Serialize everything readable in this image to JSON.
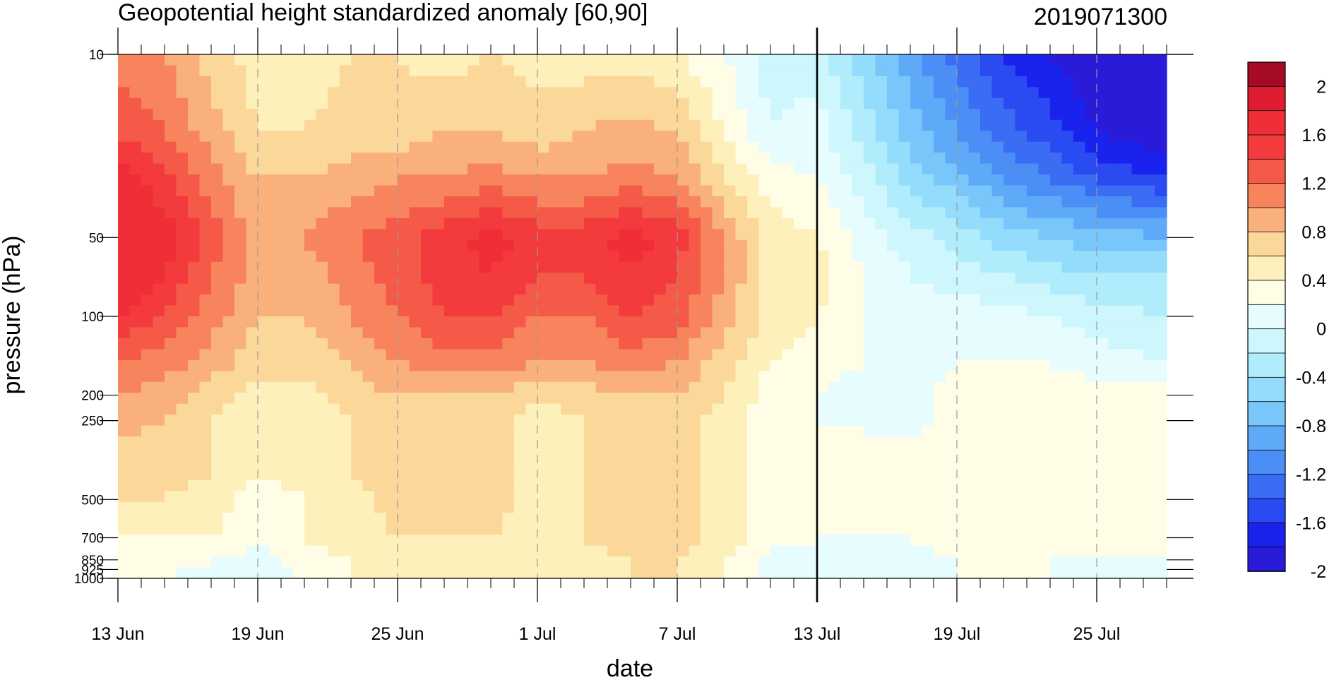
{
  "chart_data": {
    "type": "heatmap",
    "title": "Geopotential height standardized anomaly [60,90]",
    "subtitle": "2019071300",
    "xlabel": "date",
    "ylabel": "pressure (hPa)",
    "x_start": "2019-06-13",
    "x_end": "2019-07-28",
    "x_ticks": [
      "13 Jun",
      "19 Jun",
      "25 Jun",
      "1 Jul",
      "7 Jul",
      "13 Jul",
      "19 Jul",
      "25 Jul"
    ],
    "y_scale": "log",
    "y_reversed": true,
    "y_ticks": [
      10,
      50,
      100,
      200,
      250,
      500,
      700,
      850,
      925,
      1000
    ],
    "vertical_marker": "13 Jul",
    "colorbar": {
      "levels": [
        -2.2,
        -2,
        -1.8,
        -1.6,
        -1.4,
        -1.2,
        -1,
        -0.8,
        -0.6,
        -0.4,
        -0.2,
        0,
        0.2,
        0.4,
        0.6,
        0.8,
        1,
        1.2,
        1.4,
        1.6,
        1.8,
        2
      ],
      "labels": [
        "2",
        "1.6",
        "1.2",
        "0.8",
        "0.4",
        "0",
        "-0.4",
        "-0.8",
        "-1.2",
        "-1.6",
        "-2"
      ],
      "colors": [
        "#2a1bd8",
        "#1a23ee",
        "#2a4af2",
        "#3a6cf4",
        "#4a8ef6",
        "#5eaaf8",
        "#78c6fa",
        "#94dcfb",
        "#b0ecfc",
        "#cdf6fd",
        "#e6fcfe",
        "#fffde6",
        "#fef0bb",
        "#fcd79a",
        "#fab07a",
        "#f8845e",
        "#f55a48",
        "#f33a3c",
        "#ef2e38",
        "#dd1c30",
        "#a50b26"
      ]
    },
    "grid": {
      "x": [
        "2019-06-13",
        "2019-06-15",
        "2019-06-17",
        "2019-06-19",
        "2019-06-21",
        "2019-06-23",
        "2019-06-25",
        "2019-06-27",
        "2019-06-29",
        "2019-07-01",
        "2019-07-03",
        "2019-07-05",
        "2019-07-07",
        "2019-07-09",
        "2019-07-11",
        "2019-07-13",
        "2019-07-15",
        "2019-07-17",
        "2019-07-19",
        "2019-07-21",
        "2019-07-23",
        "2019-07-25",
        "2019-07-28"
      ],
      "p": [
        10,
        20,
        30,
        50,
        70,
        100,
        150,
        200,
        250,
        300,
        400,
        500,
        700,
        850,
        1000
      ],
      "z": [
        [
          0.9,
          0.8,
          0.5,
          0.3,
          0.3,
          0.4,
          0.4,
          0.3,
          0.4,
          0.3,
          0.3,
          0.3,
          0.2,
          0.0,
          -0.3,
          -0.3,
          -0.7,
          -1.1,
          -1.5,
          -1.8,
          -2.0,
          -2.2,
          -2.4
        ],
        [
          1.2,
          1.0,
          0.7,
          0.4,
          0.4,
          0.5,
          0.5,
          0.6,
          0.6,
          0.5,
          0.6,
          0.7,
          0.6,
          0.2,
          -0.2,
          -0.1,
          -0.5,
          -0.9,
          -1.2,
          -1.5,
          -1.7,
          -2.0,
          -2.2
        ],
        [
          1.5,
          1.3,
          0.9,
          0.6,
          0.6,
          0.7,
          0.8,
          0.8,
          0.9,
          0.8,
          0.8,
          0.9,
          0.8,
          0.4,
          0.1,
          0.0,
          -0.3,
          -0.7,
          -0.9,
          -1.2,
          -1.4,
          -1.6,
          -1.8
        ],
        [
          1.6,
          1.5,
          1.1,
          0.7,
          0.8,
          1.0,
          1.1,
          1.3,
          1.5,
          1.3,
          1.3,
          1.5,
          1.3,
          0.8,
          0.3,
          0.2,
          -0.1,
          -0.3,
          -0.5,
          -0.7,
          -0.8,
          -0.9,
          -1.0
        ],
        [
          1.6,
          1.4,
          1.0,
          0.7,
          0.7,
          0.9,
          1.1,
          1.3,
          1.4,
          1.2,
          1.2,
          1.4,
          1.2,
          0.8,
          0.3,
          0.3,
          0.0,
          -0.2,
          -0.3,
          -0.4,
          -0.5,
          -0.6,
          -0.6
        ],
        [
          1.4,
          1.2,
          0.9,
          0.6,
          0.6,
          0.8,
          1.0,
          1.2,
          1.2,
          1.0,
          1.0,
          1.2,
          1.1,
          0.7,
          0.3,
          0.2,
          0.0,
          -0.1,
          -0.1,
          -0.1,
          -0.2,
          -0.3,
          -0.4
        ],
        [
          1.0,
          0.9,
          0.7,
          0.5,
          0.5,
          0.6,
          0.8,
          0.9,
          0.9,
          0.8,
          0.8,
          0.9,
          0.8,
          0.5,
          0.2,
          0.1,
          0.0,
          -0.1,
          0.0,
          0.0,
          0.0,
          -0.1,
          -0.2
        ],
        [
          0.8,
          0.7,
          0.5,
          0.3,
          0.3,
          0.5,
          0.6,
          0.6,
          0.6,
          0.4,
          0.5,
          0.6,
          0.6,
          0.4,
          0.1,
          0.0,
          -0.1,
          -0.1,
          0.1,
          0.1,
          0.1,
          0.1,
          0.1
        ],
        [
          0.7,
          0.6,
          0.4,
          0.3,
          0.3,
          0.4,
          0.5,
          0.5,
          0.5,
          0.3,
          0.4,
          0.5,
          0.5,
          0.3,
          0.1,
          0.0,
          0.0,
          -0.1,
          0.1,
          0.1,
          0.1,
          0.1,
          0.1
        ],
        [
          0.6,
          0.5,
          0.4,
          0.3,
          0.3,
          0.4,
          0.5,
          0.5,
          0.5,
          0.3,
          0.4,
          0.5,
          0.5,
          0.3,
          0.1,
          0.0,
          0.0,
          0.0,
          0.1,
          0.1,
          0.1,
          0.1,
          0.1
        ],
        [
          0.5,
          0.5,
          0.4,
          0.2,
          0.3,
          0.4,
          0.5,
          0.5,
          0.5,
          0.3,
          0.4,
          0.5,
          0.5,
          0.3,
          0.1,
          0.0,
          0.0,
          0.0,
          0.1,
          0.1,
          0.1,
          0.1,
          0.1
        ],
        [
          0.4,
          0.4,
          0.3,
          0.1,
          0.2,
          0.3,
          0.5,
          0.5,
          0.5,
          0.3,
          0.4,
          0.5,
          0.5,
          0.3,
          0.1,
          0.0,
          0.0,
          0.0,
          0.1,
          0.1,
          0.1,
          0.1,
          0.1
        ],
        [
          0.2,
          0.2,
          0.2,
          0.1,
          0.2,
          0.3,
          0.4,
          0.4,
          0.4,
          0.3,
          0.4,
          0.5,
          0.5,
          0.3,
          0.1,
          0.0,
          0.0,
          0.0,
          0.1,
          0.1,
          0.1,
          0.1,
          0.1
        ],
        [
          0.1,
          0.1,
          0.0,
          -0.1,
          0.1,
          0.2,
          0.3,
          0.3,
          0.3,
          0.2,
          0.3,
          0.4,
          0.4,
          0.2,
          -0.1,
          -0.1,
          -0.1,
          -0.1,
          0.0,
          0.0,
          0.0,
          0.0,
          0.0
        ],
        [
          0.1,
          0.0,
          -0.1,
          -0.2,
          0.0,
          0.2,
          0.3,
          0.3,
          0.3,
          0.2,
          0.3,
          0.4,
          0.4,
          0.2,
          -0.1,
          -0.1,
          -0.1,
          -0.1,
          0.0,
          0.0,
          0.0,
          -0.1,
          -0.1
        ]
      ]
    }
  }
}
